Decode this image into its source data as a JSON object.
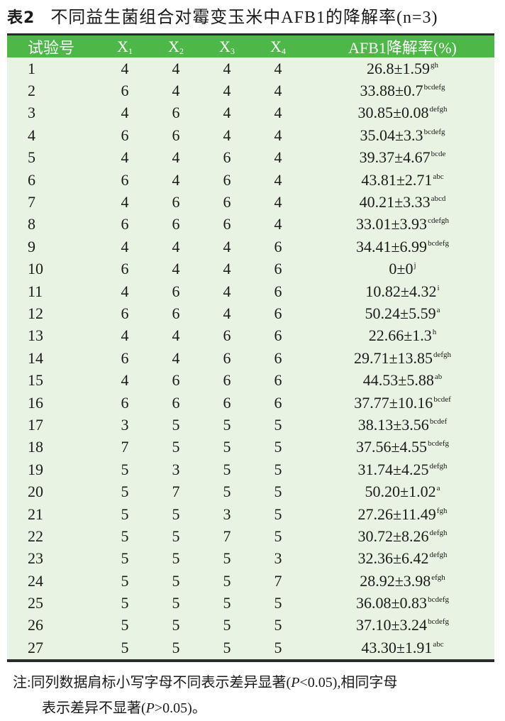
{
  "title": {
    "label": "表2",
    "text": "不同益生菌组合对霉变玉米中AFB1的降解率(n=3)"
  },
  "colors": {
    "header_bg": "#4db748",
    "body_bg": "#e9f3e3",
    "rule": "#2b2b2b"
  },
  "table": {
    "headers": [
      {
        "text": "试验号",
        "sub": ""
      },
      {
        "text": "X",
        "sub": "1"
      },
      {
        "text": "X",
        "sub": "2"
      },
      {
        "text": "X",
        "sub": "3"
      },
      {
        "text": "X",
        "sub": "4"
      },
      {
        "text": "AFB1降解率(%)",
        "sub": ""
      }
    ],
    "rows": [
      {
        "no": "1",
        "x1": "4",
        "x2": "4",
        "x3": "4",
        "x4": "4",
        "rate": "26.8±1.59",
        "sig": "gh"
      },
      {
        "no": "2",
        "x1": "6",
        "x2": "4",
        "x3": "4",
        "x4": "4",
        "rate": "33.88±0.7",
        "sig": "bcdefg"
      },
      {
        "no": "3",
        "x1": "4",
        "x2": "6",
        "x3": "4",
        "x4": "4",
        "rate": "30.85±0.08",
        "sig": "defgh"
      },
      {
        "no": "4",
        "x1": "6",
        "x2": "6",
        "x3": "4",
        "x4": "4",
        "rate": "35.04±3.3",
        "sig": "bcdefg"
      },
      {
        "no": "5",
        "x1": "4",
        "x2": "4",
        "x3": "6",
        "x4": "4",
        "rate": "39.37±4.67",
        "sig": "bcde"
      },
      {
        "no": "6",
        "x1": "6",
        "x2": "4",
        "x3": "6",
        "x4": "4",
        "rate": "43.81±2.71",
        "sig": "abc"
      },
      {
        "no": "7",
        "x1": "4",
        "x2": "6",
        "x3": "6",
        "x4": "4",
        "rate": "40.21±3.33",
        "sig": "abcd"
      },
      {
        "no": "8",
        "x1": "6",
        "x2": "6",
        "x3": "6",
        "x4": "4",
        "rate": "33.01±3.93",
        "sig": "cdefgh"
      },
      {
        "no": "9",
        "x1": "4",
        "x2": "4",
        "x3": "4",
        "x4": "6",
        "rate": "34.41±6.99",
        "sig": "bcdefg"
      },
      {
        "no": "10",
        "x1": "6",
        "x2": "4",
        "x3": "4",
        "x4": "6",
        "rate": "0±0",
        "sig": "j"
      },
      {
        "no": "11",
        "x1": "4",
        "x2": "6",
        "x3": "4",
        "x4": "6",
        "rate": "10.82±4.32",
        "sig": "i"
      },
      {
        "no": "12",
        "x1": "6",
        "x2": "6",
        "x3": "4",
        "x4": "6",
        "rate": "50.24±5.59",
        "sig": "a"
      },
      {
        "no": "13",
        "x1": "4",
        "x2": "4",
        "x3": "6",
        "x4": "6",
        "rate": "22.66±1.3",
        "sig": "h"
      },
      {
        "no": "14",
        "x1": "6",
        "x2": "4",
        "x3": "6",
        "x4": "6",
        "rate": "29.71±13.85",
        "sig": "defgh"
      },
      {
        "no": "15",
        "x1": "4",
        "x2": "6",
        "x3": "6",
        "x4": "6",
        "rate": "44.53±5.88",
        "sig": "ab"
      },
      {
        "no": "16",
        "x1": "6",
        "x2": "6",
        "x3": "6",
        "x4": "6",
        "rate": "37.77±10.16",
        "sig": "bcdef"
      },
      {
        "no": "17",
        "x1": "3",
        "x2": "5",
        "x3": "5",
        "x4": "5",
        "rate": "38.13±3.56",
        "sig": "bcdef"
      },
      {
        "no": "18",
        "x1": "7",
        "x2": "5",
        "x3": "5",
        "x4": "5",
        "rate": "37.56±4.55",
        "sig": "bcdefg"
      },
      {
        "no": "19",
        "x1": "5",
        "x2": "3",
        "x3": "5",
        "x4": "5",
        "rate": "31.74±4.25",
        "sig": "defgh"
      },
      {
        "no": "20",
        "x1": "5",
        "x2": "7",
        "x3": "5",
        "x4": "5",
        "rate": "50.20±1.02",
        "sig": "a"
      },
      {
        "no": "21",
        "x1": "5",
        "x2": "5",
        "x3": "3",
        "x4": "5",
        "rate": "27.26±11.49",
        "sig": "fgh"
      },
      {
        "no": "22",
        "x1": "5",
        "x2": "5",
        "x3": "7",
        "x4": "5",
        "rate": "30.72±8.26",
        "sig": "defgh"
      },
      {
        "no": "23",
        "x1": "5",
        "x2": "5",
        "x3": "5",
        "x4": "3",
        "rate": "32.36±6.42",
        "sig": "defgh"
      },
      {
        "no": "24",
        "x1": "5",
        "x2": "5",
        "x3": "5",
        "x4": "7",
        "rate": "28.92±3.98",
        "sig": "efgh"
      },
      {
        "no": "25",
        "x1": "5",
        "x2": "5",
        "x3": "5",
        "x4": "5",
        "rate": "36.08±0.83",
        "sig": "bcdefg"
      },
      {
        "no": "26",
        "x1": "5",
        "x2": "5",
        "x3": "5",
        "x4": "5",
        "rate": "37.10±3.24",
        "sig": "bcdefg"
      },
      {
        "no": "27",
        "x1": "5",
        "x2": "5",
        "x3": "5",
        "x4": "5",
        "rate": "43.30±1.91",
        "sig": "abc"
      }
    ]
  },
  "note": {
    "line1_a": "注:同列数据肩标小写字母不同表示差异显著(",
    "line1_p": "P",
    "line1_b": "<0.05),相同字母",
    "line2_a": "表示差异不显著(",
    "line2_p": "P",
    "line2_b": ">0.05)。"
  }
}
